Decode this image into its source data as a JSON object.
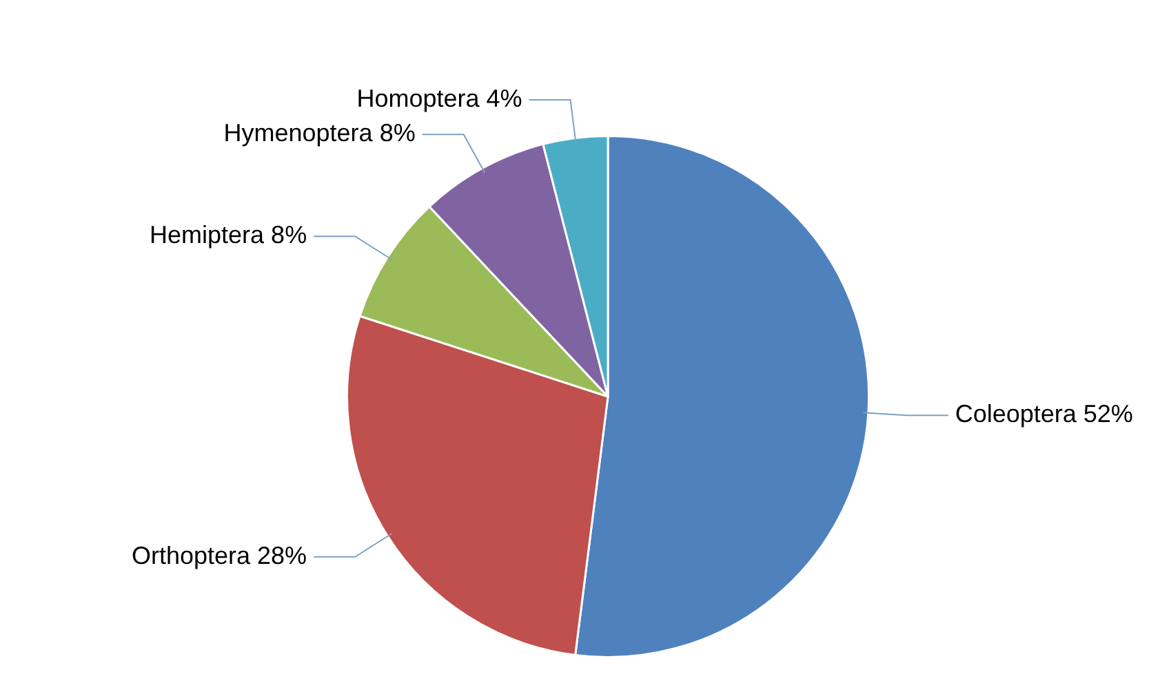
{
  "chart_data": {
    "type": "pie",
    "categories": [
      "Coleoptera",
      "Orthoptera",
      "Hemiptera",
      "Hymenoptera",
      "Homoptera"
    ],
    "values": [
      52,
      28,
      8,
      8,
      4
    ],
    "value_labels": [
      "52%",
      "28%",
      "8%",
      "8%",
      "4%"
    ],
    "colors": [
      "#4f81bd",
      "#c0504d",
      "#9bbb59",
      "#8064a2",
      "#4bacc6"
    ],
    "legend": false
  }
}
